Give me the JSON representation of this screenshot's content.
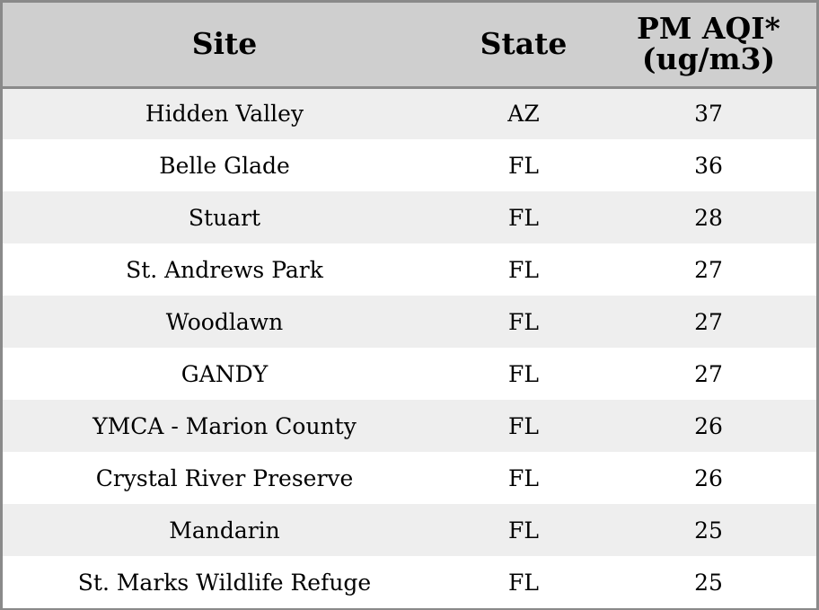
{
  "chart_data": {
    "type": "table",
    "columns": [
      "Site",
      "State",
      "PM AQI*",
      "(ug/m3)"
    ],
    "headers": {
      "site": "Site",
      "state": "State",
      "aqi_line1": "PM AQI*",
      "aqi_line2": "(ug/m3)"
    },
    "rows": [
      {
        "site": "Hidden Valley",
        "state": "AZ",
        "aqi": "37"
      },
      {
        "site": "Belle Glade",
        "state": "FL",
        "aqi": "36"
      },
      {
        "site": "Stuart",
        "state": "FL",
        "aqi": "28"
      },
      {
        "site": "St. Andrews Park",
        "state": "FL",
        "aqi": "27"
      },
      {
        "site": "Woodlawn",
        "state": "FL",
        "aqi": "27"
      },
      {
        "site": "GANDY",
        "state": "FL",
        "aqi": "27"
      },
      {
        "site": "YMCA - Marion County",
        "state": "FL",
        "aqi": "26"
      },
      {
        "site": "Crystal River Preserve",
        "state": "FL",
        "aqi": "26"
      },
      {
        "site": "Mandarin",
        "state": "FL",
        "aqi": "25"
      },
      {
        "site": "St. Marks Wildlife Refuge",
        "state": "FL",
        "aqi": "25"
      }
    ]
  },
  "colors": {
    "header_bg": "#cfcfcf",
    "row_alt_bg": "#eeeeee",
    "row_bg": "#ffffff",
    "border": "#8a8a8a",
    "text": "#000000"
  }
}
